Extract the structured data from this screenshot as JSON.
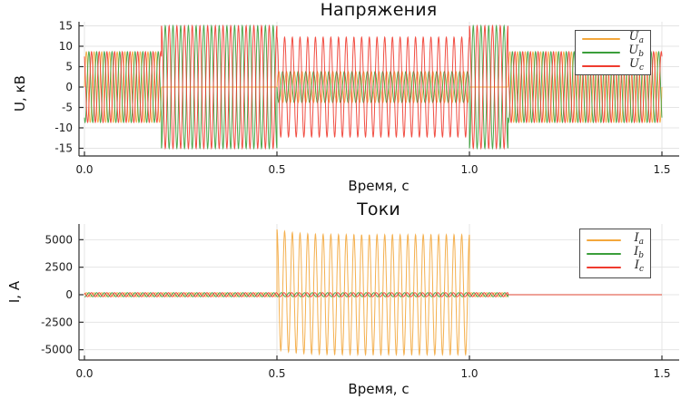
{
  "figure": {
    "background": "#ffffff",
    "grid_color": "#e4e4e4",
    "axis_color": "#2e2e2e",
    "tick_text_color": "#1c1c1c"
  },
  "chart_data": [
    {
      "type": "line",
      "title": "Напряжения",
      "xlabel": "Время, с",
      "ylabel": "U, кВ",
      "xlim": [
        -0.02,
        1.55
      ],
      "ylim": [
        -16.9,
        16.0
      ],
      "xticks": [
        0.0,
        0.5,
        1.0,
        1.5
      ],
      "xtick_labels": [
        "0.0",
        "0.5",
        "1.0",
        "1.5"
      ],
      "yticks": [
        15,
        10,
        5,
        0,
        -5,
        -10,
        -15
      ],
      "ytick_labels": [
        "15",
        "10",
        "5",
        "0",
        "-5",
        "-10",
        "-15"
      ],
      "grid": true,
      "legend_position": "top-right",
      "frequency_hz": 50,
      "legend": [
        {
          "main": "U",
          "sub": "a"
        },
        {
          "main": "U",
          "sub": "b"
        },
        {
          "main": "U",
          "sub": "c"
        }
      ],
      "series": [
        {
          "name": "U_a",
          "color": "#F3A73C",
          "unit": "kV",
          "segments": [
            {
              "t0": 0.0,
              "t1": 0.2,
              "amp": 8.66,
              "phase_deg": 0
            },
            {
              "t0": 0.2,
              "t1": 0.5,
              "amp": 0.0,
              "phase_deg": 0
            },
            {
              "t0": 0.5,
              "t1": 1.0,
              "amp": 3.8,
              "phase_deg": 0
            },
            {
              "t0": 1.0,
              "t1": 1.1,
              "amp": 0.0,
              "phase_deg": 0
            },
            {
              "t0": 1.1,
              "t1": 1.5,
              "amp": 8.66,
              "phase_deg": 0
            }
          ]
        },
        {
          "name": "U_b",
          "color": "#3B9E3B",
          "unit": "kV",
          "segments": [
            {
              "t0": 0.0,
              "t1": 0.2,
              "amp": 8.66,
              "phase_deg": -120
            },
            {
              "t0": 0.2,
              "t1": 0.5,
              "amp": 15.0,
              "phase_deg": -90
            },
            {
              "t0": 0.5,
              "t1": 1.0,
              "amp": 3.8,
              "phase_deg": 180
            },
            {
              "t0": 1.0,
              "t1": 1.1,
              "amp": 15.0,
              "phase_deg": -90
            },
            {
              "t0": 1.1,
              "t1": 1.5,
              "amp": 8.66,
              "phase_deg": -120
            }
          ]
        },
        {
          "name": "U_c",
          "color": "#EF3B2F",
          "unit": "kV",
          "segments": [
            {
              "t0": 0.0,
              "t1": 0.2,
              "amp": 8.66,
              "phase_deg": 120
            },
            {
              "t0": 0.2,
              "t1": 0.5,
              "amp": 15.0,
              "phase_deg": 90
            },
            {
              "t0": 0.5,
              "t1": 1.0,
              "amp": 12.2,
              "phase_deg": 90
            },
            {
              "t0": 1.0,
              "t1": 1.1,
              "amp": 15.0,
              "phase_deg": 90
            },
            {
              "t0": 1.1,
              "t1": 1.5,
              "amp": 8.66,
              "phase_deg": 120
            }
          ]
        }
      ]
    },
    {
      "type": "line",
      "title": "Токи",
      "xlabel": "Время, с",
      "ylabel": "I, А",
      "xlim": [
        -0.02,
        1.55
      ],
      "ylim": [
        -5950,
        6430
      ],
      "xticks": [
        0.0,
        0.5,
        1.0,
        1.5
      ],
      "xtick_labels": [
        "0.0",
        "0.5",
        "1.0",
        "1.5"
      ],
      "yticks": [
        5000,
        2500,
        0,
        -2500,
        -5000
      ],
      "ytick_labels": [
        "5000",
        "2500",
        "0",
        "-2500",
        "-5000"
      ],
      "grid": true,
      "legend_position": "top-right",
      "frequency_hz": 50,
      "legend": [
        {
          "main": "I",
          "sub": "a"
        },
        {
          "main": "I",
          "sub": "b"
        },
        {
          "main": "I",
          "sub": "c"
        }
      ],
      "series": [
        {
          "name": "I_a",
          "color": "#F3A73C",
          "unit": "A",
          "segments": [
            {
              "t0": 0.0,
              "t1": 0.5,
              "amp": 180,
              "phase_deg": 0
            },
            {
              "t0": 0.5,
              "t1": 1.0,
              "amp": 5450,
              "phase_deg": 90,
              "dc": 480,
              "dc_tau": 0.045
            },
            {
              "t0": 1.0,
              "t1": 1.1,
              "amp": 180,
              "phase_deg": 0
            },
            {
              "t0": 1.1,
              "t1": 1.5,
              "amp": 0,
              "phase_deg": 0
            }
          ]
        },
        {
          "name": "I_b",
          "color": "#3B9E3B",
          "unit": "A",
          "segments": [
            {
              "t0": 0.0,
              "t1": 0.5,
              "amp": 180,
              "phase_deg": -120
            },
            {
              "t0": 0.5,
              "t1": 1.0,
              "amp": 180,
              "phase_deg": -120
            },
            {
              "t0": 1.0,
              "t1": 1.1,
              "amp": 180,
              "phase_deg": -120
            },
            {
              "t0": 1.1,
              "t1": 1.5,
              "amp": 0,
              "phase_deg": 0
            }
          ]
        },
        {
          "name": "I_c",
          "color": "#EF3B2F",
          "unit": "A",
          "segments": [
            {
              "t0": 0.0,
              "t1": 0.5,
              "amp": 180,
              "phase_deg": 120
            },
            {
              "t0": 0.5,
              "t1": 1.0,
              "amp": 180,
              "phase_deg": 120
            },
            {
              "t0": 1.0,
              "t1": 1.1,
              "amp": 180,
              "phase_deg": 120
            },
            {
              "t0": 1.1,
              "t1": 1.5,
              "amp": 0,
              "phase_deg": 0
            }
          ]
        }
      ]
    }
  ]
}
